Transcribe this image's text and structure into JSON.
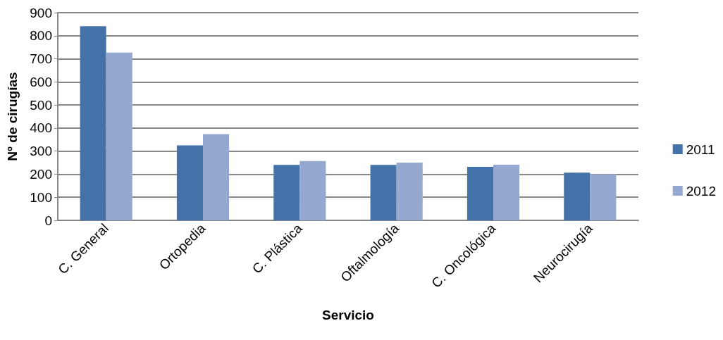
{
  "chart_data": {
    "type": "bar",
    "xlabel": "Servicio",
    "ylabel": "Nº de cirugías",
    "categories": [
      "C. General",
      "Ortopedia",
      "C. Plástica",
      "Oftalmología",
      "C. Oncológica",
      "Neurocirugía"
    ],
    "series": [
      {
        "name": "2011",
        "color": "#4472a8",
        "values": [
          841,
          325,
          240,
          240,
          232,
          207
        ]
      },
      {
        "name": "2012",
        "color": "#95a9d0",
        "values": [
          727,
          374,
          257,
          250,
          241,
          200
        ]
      }
    ],
    "ylim": [
      0,
      900
    ],
    "yticks": [
      0,
      100,
      200,
      300,
      400,
      500,
      600,
      700,
      800,
      900
    ],
    "grid": "y",
    "legend": "right"
  }
}
